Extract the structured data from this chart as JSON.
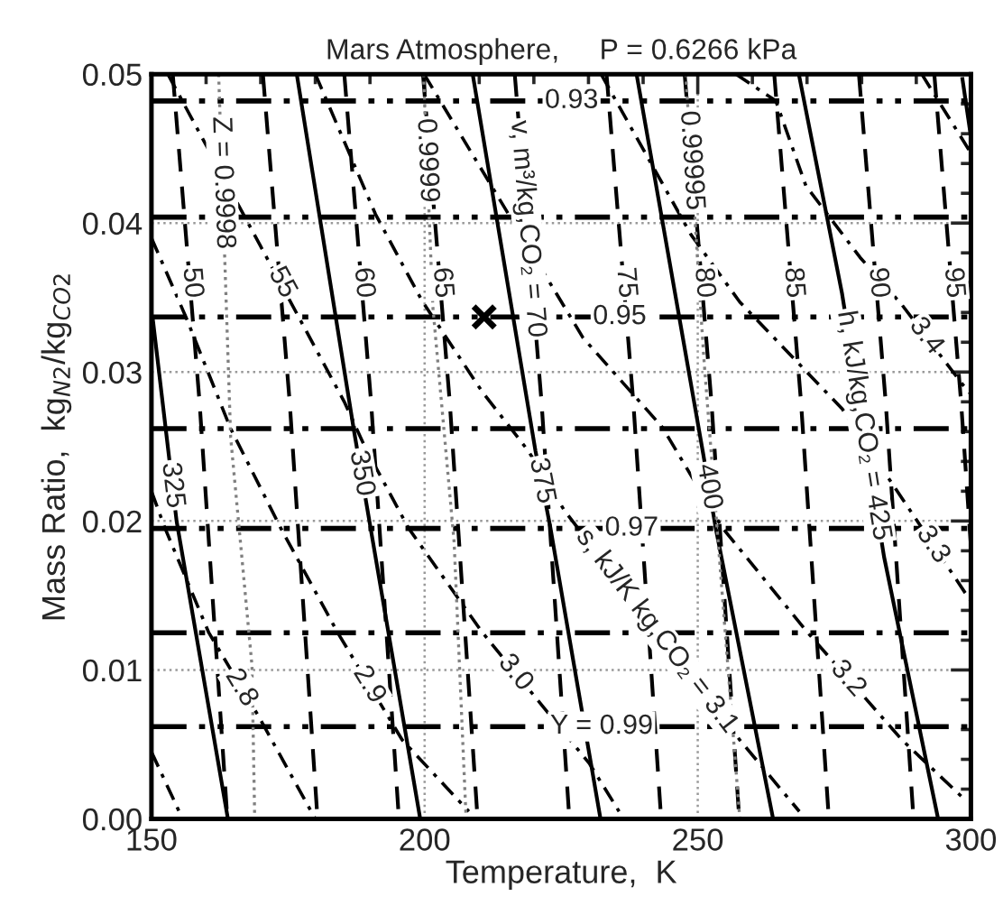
{
  "chart_data": {
    "type": "line",
    "title": "Mars Atmosphere,     P = 0.6266 kPa",
    "xlabel": "Temperature,  K",
    "ylabel": "Mass Ratio,  kg$_{N2}$/kg$_{CO2}$",
    "xlim": [
      150,
      300
    ],
    "xticks": [
      150,
      200,
      250,
      300
    ],
    "ylim": [
      0,
      0.05
    ],
    "yticks": [
      {
        "value": 0,
        "label": "0.00"
      },
      0.01,
      0.02,
      0.03,
      0.04,
      0.05
    ],
    "grid": true,
    "series": [
      {
        "line_style": "solid",
        "color": "#000000",
        "x": [
          150.2,
          154.6,
          164.0
        ],
        "values": [
          0.0337,
          0.02,
          0
        ]
      },
      {
        "line_style": "solid",
        "color": "#000000",
        "x": [
          176.6,
          187.1,
          199.2
        ],
        "values": [
          0.05,
          0.026,
          0
        ]
      },
      {
        "line_style": "solid",
        "color": "#000000",
        "x": [
          208.8,
          220.3,
          223.0,
          232.2
        ],
        "values": [
          0.05,
          0.0247,
          0.0196,
          0
        ]
      },
      {
        "line_style": "solid",
        "color": "#000000",
        "x": [
          238.8,
          243.4,
          251.0,
          253.3,
          263.8
        ],
        "values": [
          0.05,
          0.0404,
          0.0245,
          0.0195,
          0
        ]
      },
      {
        "line_style": "solid",
        "color": "#000000",
        "x": [
          268.5,
          276.4,
          284.1,
          294.0
        ],
        "values": [
          0.05,
          0.0353,
          0.0176,
          0
        ]
      },
      {
        "line_style": "solid",
        "color": "#000000",
        "x": [
          298.4,
          300.0
        ],
        "values": [
          0.0498,
          0.0458
        ]
      },
      {
        "line_style": "dashed",
        "color": "#000000",
        "x": [
          153.9,
          158.8,
          163.9
        ],
        "values": [
          0.05,
          0.028,
          0
        ]
      },
      {
        "line_style": "dashed",
        "color": "#000000",
        "x": [
          170.4,
          175.3,
          180.4
        ],
        "values": [
          0.05,
          0.028,
          0
        ]
      },
      {
        "line_style": "dashed",
        "color": "#000000",
        "x": [
          185.3,
          190.2,
          195.3
        ],
        "values": [
          0.05,
          0.028,
          0
        ]
      },
      {
        "line_style": "dashed",
        "color": "#000000",
        "x": [
          199.7,
          204.6,
          209.7
        ],
        "values": [
          0.05,
          0.028,
          0
        ]
      },
      {
        "line_style": "dashed",
        "color": "#000000",
        "x": [
          216.5,
          221.4,
          226.5
        ],
        "values": [
          0.05,
          0.028,
          0
        ]
      },
      {
        "line_style": "dashed",
        "color": "#000000",
        "x": [
          233.3,
          238.2,
          243.3
        ],
        "values": [
          0.05,
          0.028,
          0
        ]
      },
      {
        "line_style": "dashed",
        "color": "#000000",
        "x": [
          247.6,
          252.5,
          257.6
        ],
        "values": [
          0.05,
          0.028,
          0
        ]
      },
      {
        "line_style": "dashed",
        "color": "#000000",
        "x": [
          264.0,
          268.9,
          274.0
        ],
        "values": [
          0.05,
          0.028,
          0
        ]
      },
      {
        "line_style": "dashed",
        "color": "#000000",
        "x": [
          279.5,
          284.4,
          289.5
        ],
        "values": [
          0.05,
          0.028,
          0
        ]
      },
      {
        "line_style": "dashed",
        "color": "#000000",
        "x": [
          293.3,
          298.2,
          300.0
        ],
        "values": [
          0.05,
          0.028,
          0.0183
        ]
      },
      {
        "line_style": "dashdot",
        "color": "#000000",
        "x": [
          150.0,
          155.7
        ],
        "values": [
          0.0045,
          0
        ]
      },
      {
        "line_style": "dashdot",
        "color": "#000000",
        "x": [
          150.0,
          152.5,
          160.5,
          169.6,
          180.0
        ],
        "values": [
          0.022,
          0.0195,
          0.0125,
          0.0069,
          0
        ]
      },
      {
        "line_style": "dashdot",
        "color": "#000000",
        "x": [
          150.0,
          156.3,
          164.5,
          173.7,
          184.1,
          195.9,
          208.1
        ],
        "values": [
          0.039,
          0.0337,
          0.0262,
          0.0195,
          0.0125,
          0.0053,
          0.0005
        ]
      },
      {
        "line_style": "dashdot",
        "color": "#000000",
        "x": [
          153.0,
          169.9,
          185.3,
          189.3,
          197.1,
          210.4,
          230.2,
          235.6
        ],
        "values": [
          0.05,
          0.0385,
          0.028,
          0.0248,
          0.0195,
          0.0126,
          0.0037,
          0.0005
        ]
      },
      {
        "line_style": "dashdot",
        "color": "#000000",
        "x": [
          180.0,
          191.0,
          199.5,
          210.5,
          219.0,
          225.6,
          257.7,
          268.6
        ],
        "values": [
          0.05,
          0.0406,
          0.0348,
          0.0287,
          0.0247,
          0.0207,
          0.0053,
          0.0005
        ]
      },
      {
        "line_style": "dashdot",
        "color": "#000000",
        "x": [
          199.9,
          229.0,
          243.5,
          254.4,
          269.9,
          287.4,
          298.3
        ],
        "values": [
          0.05,
          0.0323,
          0.0263,
          0.0196,
          0.0126,
          0.0053,
          0.0015
        ]
      },
      {
        "line_style": "dashdot",
        "color": "#000000",
        "x": [
          232.3,
          248.8,
          257.7,
          276.5,
          300.0
        ],
        "values": [
          0.05,
          0.0392,
          0.0347,
          0.0275,
          0.0146
        ]
      },
      {
        "line_style": "dashdot",
        "color": "#000000",
        "x": [
          257.0,
          264.3,
          269.8,
          279.7,
          287.4,
          298.4,
          300.0
        ],
        "values": [
          0.05,
          0.0482,
          0.0425,
          0.0377,
          0.0345,
          0.0292,
          0.0285
        ]
      },
      {
        "line_style": "dashdot",
        "color": "#000000",
        "x": [
          291.0,
          299.5,
          300.0
        ],
        "values": [
          0.05,
          0.045,
          0.0447
        ]
      },
      {
        "line_style": "dashdotdot",
        "color": "#000000",
        "x": [
          150,
          300
        ],
        "values": [
          0.0482,
          0.0482
        ]
      },
      {
        "line_style": "dashdotdot",
        "color": "#000000",
        "x": [
          150,
          300
        ],
        "values": [
          0.0404,
          0.0404
        ]
      },
      {
        "line_style": "dashdotdot",
        "color": "#000000",
        "x": [
          150,
          300
        ],
        "values": [
          0.0337,
          0.0337
        ]
      },
      {
        "line_style": "dashdotdot",
        "color": "#000000",
        "x": [
          150,
          300
        ],
        "values": [
          0.0262,
          0.0262
        ]
      },
      {
        "line_style": "dashdotdot",
        "color": "#000000",
        "x": [
          150,
          300
        ],
        "values": [
          0.0195,
          0.0195
        ]
      },
      {
        "line_style": "dashdotdot",
        "color": "#000000",
        "x": [
          150,
          300
        ],
        "values": [
          0.0125,
          0.0125
        ]
      },
      {
        "line_style": "dashdotdot",
        "color": "#000000",
        "x": [
          150,
          300
        ],
        "values": [
          0.0062,
          0.0062
        ]
      },
      {
        "line_style": "dotted",
        "color": "#808080",
        "x": [
          162.3,
          164.5,
          168.4,
          168.9
        ],
        "values": [
          0.05,
          0.0256,
          0.0103,
          0
        ]
      },
      {
        "line_style": "dotted",
        "color": "#808080",
        "x": [
          199.8,
          201.5,
          205.4,
          207.6
        ],
        "values": [
          0.05,
          0.0344,
          0.0186,
          0
        ]
      },
      {
        "line_style": "dotted",
        "color": "#808080",
        "x": [
          247.8,
          251.1,
          254.5,
          257.7
        ],
        "values": [
          0.05,
          0.031,
          0.015,
          0
        ]
      },
      {
        "type": "scatter",
        "marker": "cross",
        "color": "#000000",
        "x": [
          210.9
        ],
        "values": [
          0.0337
        ]
      }
    ],
    "annotations": [
      {
        "text": "325",
        "x": 153.8,
        "y": 0.0224
      },
      {
        "text": "350",
        "x": 188.4,
        "y": 0.0232
      },
      {
        "text": "375",
        "x": 221.4,
        "y": 0.0227
      },
      {
        "text": "400",
        "x": 252.0,
        "y": 0.0223
      },
      {
        "text": "h, kJ/kg,CO₂ = 425",
        "x": 280.3,
        "y": 0.0264
      },
      {
        "text": "50",
        "x": 157.4,
        "y": 0.036
      },
      {
        "text": "55",
        "x": 173.9,
        "y": 0.036
      },
      {
        "text": "60",
        "x": 188.8,
        "y": 0.036
      },
      {
        "text": "65",
        "x": 203.2,
        "y": 0.036
      },
      {
        "text": "v, m³/kg,CO₂ = 70",
        "x": 218.8,
        "y": 0.0396
      },
      {
        "text": "75",
        "x": 236.8,
        "y": 0.036
      },
      {
        "text": "80",
        "x": 251.1,
        "y": 0.036
      },
      {
        "text": "85",
        "x": 267.5,
        "y": 0.036
      },
      {
        "text": "90",
        "x": 283.0,
        "y": 0.036
      },
      {
        "text": "95",
        "x": 296.8,
        "y": 0.036
      },
      {
        "text": "2.8",
        "x": 166.4,
        "y": 0.0088
      },
      {
        "text": "2.9",
        "x": 189.8,
        "y": 0.009
      },
      {
        "text": "3.0",
        "x": 216.6,
        "y": 0.0098
      },
      {
        "text": "s, kJ/K kg,CO₂ = 3.1",
        "x": 242.5,
        "y": 0.0126
      },
      {
        "text": "3.2",
        "x": 277.5,
        "y": 0.0094
      },
      {
        "text": "3.3",
        "x": 293.0,
        "y": 0.0184
      },
      {
        "text": "3.4",
        "x": 291.8,
        "y": 0.0324
      },
      {
        "text": "0.93",
        "x": 226.9,
        "y": 0.0482
      },
      {
        "text": "0.95",
        "x": 235.7,
        "y": 0.0337
      },
      {
        "text": "0.97",
        "x": 237.9,
        "y": 0.0195
      },
      {
        "text": "Y = 0.99",
        "x": 232.4,
        "y": 0.0062
      },
      {
        "text": "Z = 0.9998",
        "x": 163.0,
        "y": 0.0427
      },
      {
        "text": "0.9999",
        "x": 200.4,
        "y": 0.0442
      },
      {
        "text": "0.99995",
        "x": 248.8,
        "y": 0.0442
      }
    ]
  }
}
